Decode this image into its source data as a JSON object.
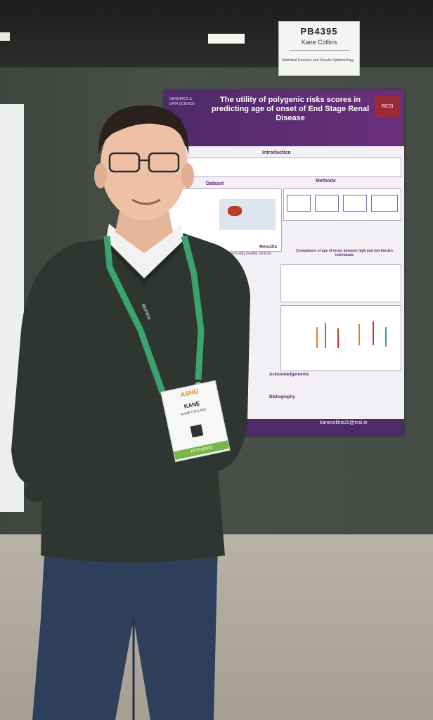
{
  "name_card": {
    "board_id": "PB4395",
    "presenter": "Kane Collins",
    "topic": "Statistical Genetics and Genetic Epidemiology"
  },
  "poster": {
    "title": "The utility of polygenic risks scores in predicting age of onset of End Stage Renal Disease",
    "logo_left": "GENOMICS & DATA SCIENCE",
    "logo_right": "RCSI",
    "sections": {
      "introduction": "Introduction",
      "dataset": "Dataset",
      "methods": "Methods",
      "results": "Results",
      "comparison_heading": "Comparison of age of onset between high and low burden individuals",
      "compared_heading": "Compared between early healthy controls",
      "acknowledgements": "Acknowledgements",
      "bibliography": "Bibliography"
    },
    "email": "kanecollins20@rcsi.ie"
  },
  "badge": {
    "event": "ASHG",
    "first_name": "KANE",
    "last_name": "KANE COLLINS",
    "role": "ATTENDEE"
  },
  "lanyard_text": "illumina",
  "colors": {
    "poster_header": "#4e2a68",
    "lanyard": "#3aa36e",
    "sweater": "#2f3530",
    "jeans": "#2e3f5c",
    "board": "#454c45"
  }
}
